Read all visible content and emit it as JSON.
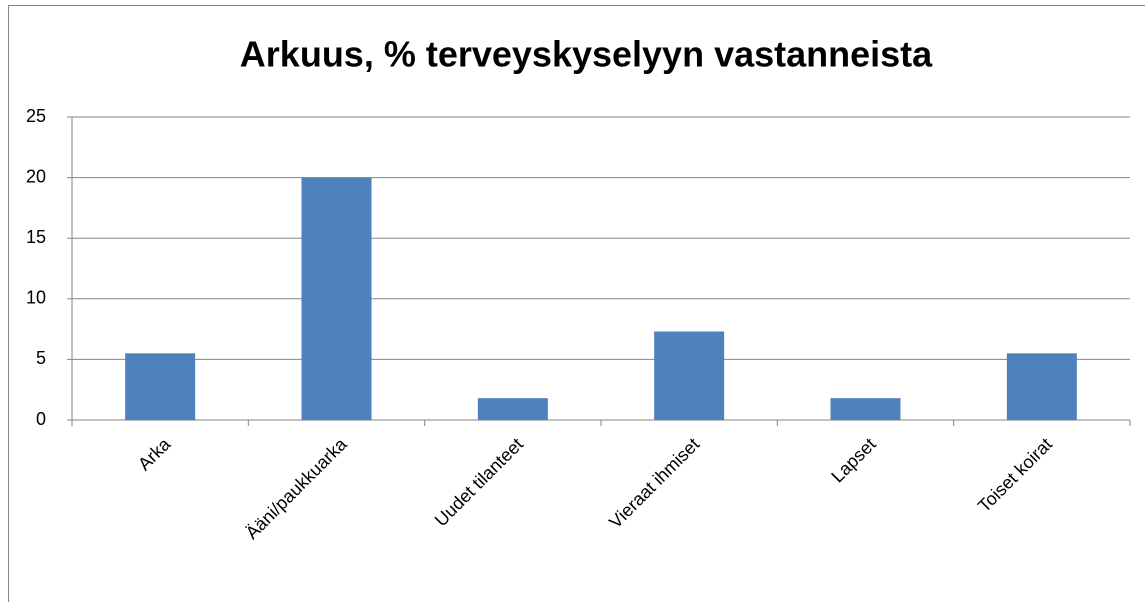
{
  "chart_data": {
    "type": "bar",
    "title": "Arkuus, % terveyskyselyyn vastanneista",
    "categories": [
      "Arka",
      "Ääni/paukkuarka",
      "Uudet tilanteet",
      "Vieraat ihmiset",
      "Lapset",
      "Toiset koirat"
    ],
    "values": [
      5.5,
      20,
      1.8,
      7.3,
      1.8,
      5.5
    ],
    "color": "#4f81bd",
    "ylim": [
      0,
      25
    ],
    "yticks": [
      0,
      5,
      10,
      15,
      20,
      25
    ],
    "grid": true
  }
}
